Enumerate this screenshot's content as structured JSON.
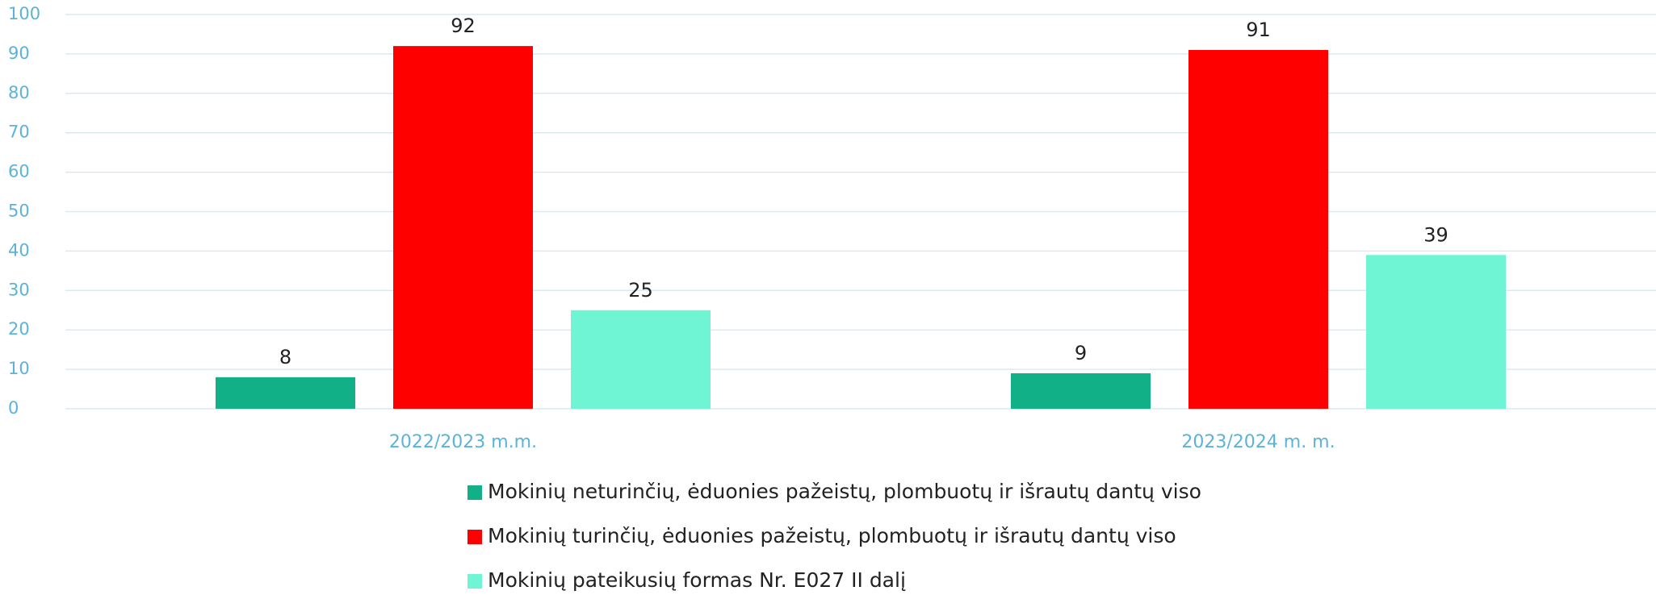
{
  "chart_data": {
    "type": "bar",
    "categories": [
      "2022/2023 m.m.",
      "2023/2024 m. m."
    ],
    "series": [
      {
        "name": "Mokinių neturinčių, ėduonies pažeistų, plombuotų ir išrautų dantų viso",
        "color": "#12b087",
        "values": [
          8,
          9
        ]
      },
      {
        "name": "Mokinių turinčių, ėduonies pažeistų, plombuotų ir išrautų dantų viso",
        "color": "#ff0000",
        "values": [
          92,
          91
        ]
      },
      {
        "name": "Mokinių pateikusių formas Nr. E027 II dalį",
        "color": "#6ff5d3",
        "values": [
          25,
          39
        ]
      }
    ],
    "ylim": [
      0,
      100
    ],
    "yticks": [
      0,
      10,
      20,
      30,
      40,
      50,
      60,
      70,
      80,
      90,
      100
    ],
    "grid": true,
    "legend": "bottom"
  }
}
